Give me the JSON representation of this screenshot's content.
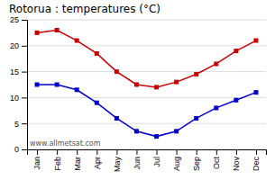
{
  "chart_data": {
    "type": "line",
    "title": "Rotorua : temperatures (°C)",
    "categories": [
      "Jan",
      "Feb",
      "Mar",
      "Apr",
      "May",
      "Jun",
      "Jul",
      "Aug",
      "Sep",
      "Oct",
      "Nov",
      "Dec"
    ],
    "series": [
      {
        "color": "#cc0000",
        "marker": "square",
        "values": [
          22.5,
          23.0,
          21.0,
          18.5,
          15.0,
          12.5,
          12.0,
          13.0,
          14.5,
          16.5,
          19.0,
          21.0
        ]
      },
      {
        "color": "#0000cc",
        "marker": "square",
        "values": [
          12.5,
          12.5,
          11.5,
          9.0,
          6.0,
          3.5,
          2.5,
          3.5,
          6.0,
          8.0,
          9.5,
          11.0
        ]
      }
    ],
    "ylim": [
      0,
      25
    ],
    "yticks": [
      0,
      5,
      10,
      15,
      20,
      25
    ],
    "grid": true,
    "annotations": [
      "www.allmetsat.com"
    ]
  }
}
